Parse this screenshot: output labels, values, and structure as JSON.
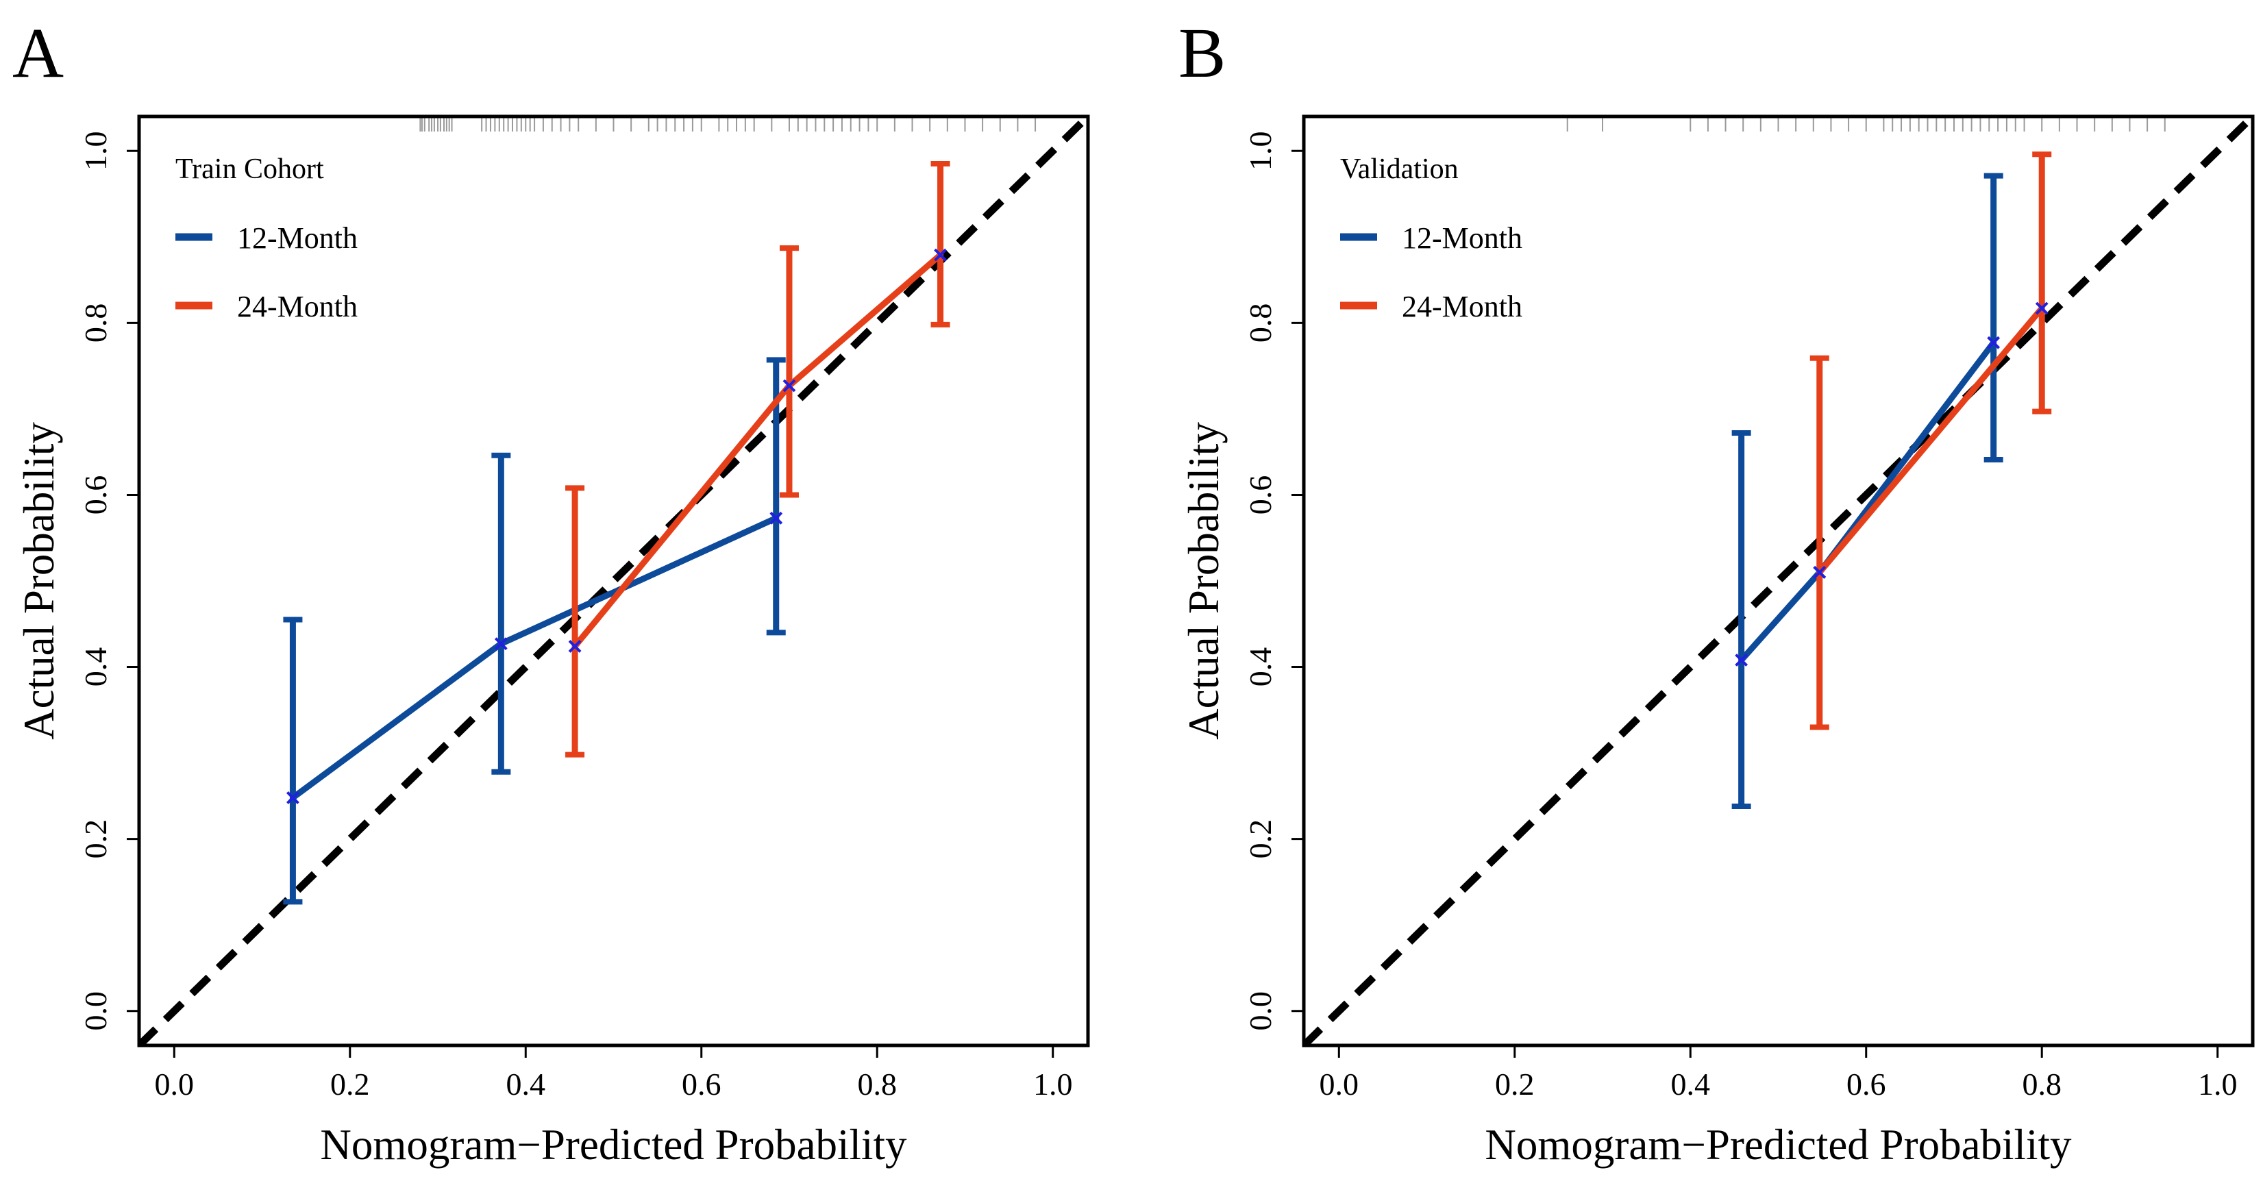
{
  "chart_data": [
    {
      "type": "line",
      "panel_label": "A",
      "legend_title": "Train Cohort",
      "xlabel": "Nomogram−Predicted Probability",
      "ylabel": "Actual Probability",
      "xlim": [
        -0.04,
        1.04
      ],
      "ylim": [
        -0.04,
        1.04
      ],
      "xticks": [
        "0.0",
        "0.2",
        "0.4",
        "0.6",
        "0.8",
        "1.0"
      ],
      "yticks": [
        "0.0",
        "0.2",
        "0.4",
        "0.6",
        "0.8",
        "1.0"
      ],
      "reference_line": "ideal diagonal y = x (dashed black)",
      "rug_x": [
        0.28,
        0.282,
        0.285,
        0.29,
        0.293,
        0.296,
        0.3,
        0.303,
        0.307,
        0.31,
        0.313,
        0.316,
        0.35,
        0.355,
        0.36,
        0.365,
        0.37,
        0.375,
        0.38,
        0.385,
        0.39,
        0.395,
        0.4,
        0.405,
        0.41,
        0.42,
        0.43,
        0.44,
        0.45,
        0.46,
        0.48,
        0.5,
        0.52,
        0.54,
        0.55,
        0.56,
        0.57,
        0.58,
        0.59,
        0.6,
        0.62,
        0.63,
        0.64,
        0.65,
        0.66,
        0.68,
        0.7,
        0.71,
        0.72,
        0.73,
        0.74,
        0.75,
        0.76,
        0.77,
        0.78,
        0.79,
        0.8,
        0.82,
        0.84,
        0.86,
        0.88,
        0.9,
        0.92,
        0.94,
        0.96,
        0.98
      ],
      "series": [
        {
          "name": "12-Month",
          "color": "#0d4a9a",
          "points": [
            {
              "x": 0.135,
              "y": 0.248,
              "lo": 0.127,
              "hi": 0.455
            },
            {
              "x": 0.372,
              "y": 0.427,
              "lo": 0.278,
              "hi": 0.646
            },
            {
              "x": 0.685,
              "y": 0.573,
              "lo": 0.44,
              "hi": 0.757
            }
          ]
        },
        {
          "name": "24-Month",
          "color": "#e5401a",
          "points": [
            {
              "x": 0.456,
              "y": 0.424,
              "lo": 0.298,
              "hi": 0.608
            },
            {
              "x": 0.7,
              "y": 0.727,
              "lo": 0.6,
              "hi": 0.887
            },
            {
              "x": 0.872,
              "y": 0.879,
              "lo": 0.798,
              "hi": 0.985
            }
          ]
        }
      ]
    },
    {
      "type": "line",
      "panel_label": "B",
      "legend_title": "Validation",
      "xlabel": "Nomogram−Predicted Probability",
      "ylabel": "Actual Probability",
      "xlim": [
        -0.04,
        1.04
      ],
      "ylim": [
        -0.04,
        1.04
      ],
      "xticks": [
        "0.0",
        "0.2",
        "0.4",
        "0.6",
        "0.8",
        "1.0"
      ],
      "yticks": [
        "0.0",
        "0.2",
        "0.4",
        "0.6",
        "0.8",
        "1.0"
      ],
      "reference_line": "ideal diagonal y = x (dashed black)",
      "rug_x": [
        0.26,
        0.3,
        0.4,
        0.42,
        0.44,
        0.46,
        0.48,
        0.5,
        0.52,
        0.54,
        0.56,
        0.58,
        0.6,
        0.62,
        0.63,
        0.64,
        0.65,
        0.66,
        0.67,
        0.68,
        0.69,
        0.7,
        0.71,
        0.72,
        0.73,
        0.74,
        0.75,
        0.76,
        0.77,
        0.78,
        0.8,
        0.82,
        0.84,
        0.86,
        0.88,
        0.9,
        0.92,
        0.94
      ],
      "series": [
        {
          "name": "12-Month",
          "color": "#0d4a9a",
          "points": [
            {
              "x": 0.458,
              "y": 0.408,
              "lo": 0.238,
              "hi": 0.672
            },
            {
              "x": 0.547,
              "y": 0.51,
              "lo": null,
              "hi": null
            },
            {
              "x": 0.745,
              "y": 0.777,
              "lo": 0.641,
              "hi": 0.971
            }
          ]
        },
        {
          "name": "24-Month",
          "color": "#e5401a",
          "points": [
            {
              "x": 0.547,
              "y": 0.51,
              "lo": 0.33,
              "hi": 0.759
            },
            {
              "x": 0.8,
              "y": 0.817,
              "lo": 0.697,
              "hi": 0.996
            }
          ]
        }
      ]
    }
  ]
}
